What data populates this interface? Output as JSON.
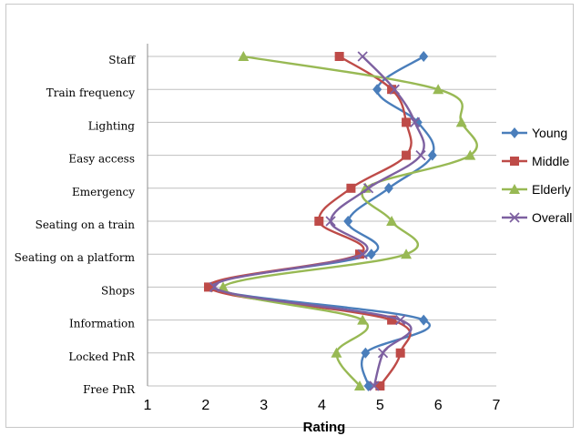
{
  "chart_data": {
    "type": "line",
    "orientation": "horizontal",
    "xlabel": "Rating",
    "xlim": [
      1,
      7
    ],
    "xticks": [
      1,
      2,
      3,
      4,
      5,
      6,
      7
    ],
    "categories": [
      "Staff",
      "Train frequency",
      "Lighting",
      "Easy access",
      "Emergency",
      "Seating on a train",
      "Seating on a platform",
      "Shops",
      "Information",
      "Locked PnR",
      "Free PnR"
    ],
    "grid": "horizontal",
    "legend_position": "right",
    "series": [
      {
        "name": "Young",
        "color": "#4a7ebb",
        "marker": "diamond",
        "values": [
          5.75,
          4.95,
          5.65,
          5.9,
          5.15,
          4.45,
          4.85,
          2.1,
          5.75,
          4.75,
          4.8
        ]
      },
      {
        "name": "Middle",
        "color": "#be4b48",
        "marker": "square",
        "values": [
          4.3,
          5.2,
          5.45,
          5.45,
          4.5,
          3.95,
          4.65,
          2.05,
          5.2,
          5.35,
          5.0
        ]
      },
      {
        "name": "Elderly",
        "color": "#98b954",
        "marker": "triangle",
        "values": [
          2.65,
          6.0,
          6.4,
          6.55,
          4.75,
          5.2,
          5.45,
          2.3,
          4.7,
          4.25,
          4.65
        ]
      },
      {
        "name": "Overall",
        "color": "#7d60a0",
        "marker": "x",
        "values": [
          4.7,
          5.25,
          5.6,
          5.7,
          4.8,
          4.15,
          4.7,
          2.15,
          5.35,
          5.05,
          4.9
        ]
      }
    ]
  }
}
